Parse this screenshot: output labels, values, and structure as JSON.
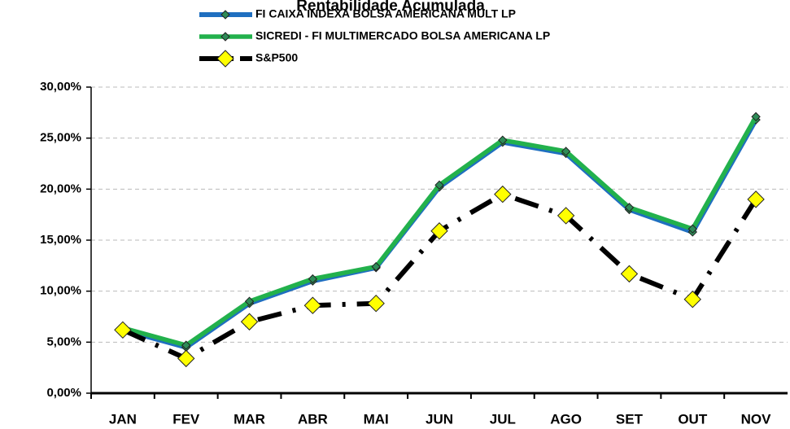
{
  "chart_data": {
    "type": "line",
    "title": "Rentabilidade Acumulada",
    "categories": [
      "JAN",
      "FEV",
      "MAR",
      "ABR",
      "MAI",
      "JUN",
      "JUL",
      "AGO",
      "SET",
      "OUT",
      "NOV"
    ],
    "series": [
      {
        "name": "FI CAIXA INDEXA BOLSA AMERICANA MULT LP",
        "color": "#1f6fc0",
        "marker_color": "#2e8b57",
        "dash": "solid",
        "values": [
          6.2,
          4.5,
          8.8,
          11.0,
          12.3,
          20.2,
          24.6,
          23.5,
          18.0,
          15.8,
          26.8
        ]
      },
      {
        "name": "SICREDI - FI MULTIMERCADO BOLSA AMERICANA LP",
        "color": "#22b14c",
        "marker_color": "#2e8b57",
        "dash": "solid",
        "values": [
          6.4,
          4.7,
          9.0,
          11.2,
          12.4,
          20.4,
          24.8,
          23.7,
          18.2,
          16.1,
          27.1
        ]
      },
      {
        "name": "S&P500",
        "color": "#000000",
        "marker_color": "#ffff00",
        "dash": "dashdot",
        "values": [
          6.2,
          3.4,
          7.0,
          8.6,
          8.8,
          15.9,
          19.5,
          17.4,
          11.7,
          9.2,
          19.0
        ]
      }
    ],
    "ylim": [
      0,
      30
    ],
    "yticks": [
      {
        "value": 0,
        "label": "0,00%"
      },
      {
        "value": 5,
        "label": "5,00%"
      },
      {
        "value": 10,
        "label": "10,00%"
      },
      {
        "value": 15,
        "label": "15,00%"
      },
      {
        "value": 20,
        "label": "20,00%"
      },
      {
        "value": 25,
        "label": "25,00%"
      },
      {
        "value": 30,
        "label": "30,00%"
      }
    ],
    "grid": true,
    "legend": "top"
  }
}
